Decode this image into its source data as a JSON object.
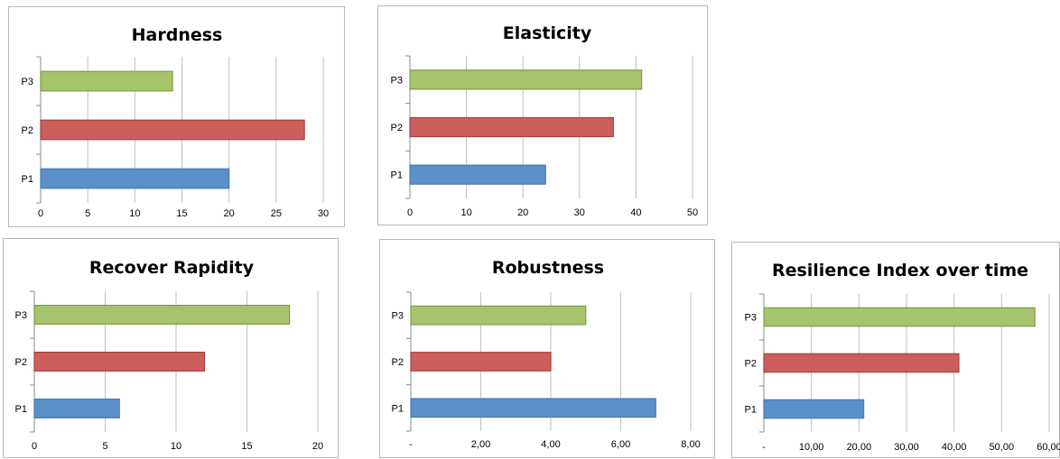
{
  "colors": {
    "P1": {
      "fill": "#5b8fc9",
      "stroke": "#4a7ab3"
    },
    "P2": {
      "fill": "#cc5f5c",
      "stroke": "#a8403d"
    },
    "P3": {
      "fill": "#a5c46c",
      "stroke": "#7e9c48"
    }
  },
  "chart_data": [
    {
      "id": "hardness",
      "type": "bar",
      "orientation": "horizontal",
      "title": "Hardness",
      "categories": [
        "P1",
        "P2",
        "P3"
      ],
      "values": [
        20,
        28,
        14
      ],
      "xlim": [
        0,
        30
      ],
      "xticks": [
        0,
        5,
        10,
        15,
        20,
        25,
        30
      ],
      "xtick_labels": [
        "0",
        "5",
        "10",
        "15",
        "20",
        "25",
        "30"
      ],
      "grid": true
    },
    {
      "id": "elasticity",
      "type": "bar",
      "orientation": "horizontal",
      "title": "Elasticity",
      "categories": [
        "P1",
        "P2",
        "P3"
      ],
      "values": [
        24,
        36,
        41
      ],
      "xlim": [
        0,
        50
      ],
      "xticks": [
        0,
        10,
        20,
        30,
        40,
        50
      ],
      "xtick_labels": [
        "0",
        "10",
        "20",
        "30",
        "40",
        "50"
      ],
      "grid": true
    },
    {
      "id": "recover-rapidity",
      "type": "bar",
      "orientation": "horizontal",
      "title": "Recover Rapidity",
      "categories": [
        "P1",
        "P2",
        "P3"
      ],
      "values": [
        6,
        12,
        18
      ],
      "xlim": [
        0,
        20
      ],
      "xticks": [
        0,
        5,
        10,
        15,
        20
      ],
      "xtick_labels": [
        "0",
        "5",
        "10",
        "15",
        "20"
      ],
      "grid": true
    },
    {
      "id": "robustness",
      "type": "bar",
      "orientation": "horizontal",
      "title": "Robustness",
      "categories": [
        "P1",
        "P2",
        "P3"
      ],
      "values": [
        7,
        4,
        5
      ],
      "xlim": [
        0,
        8
      ],
      "xticks": [
        0,
        2,
        4,
        6,
        8
      ],
      "xtick_labels": [
        "-",
        "2,00",
        "4,00",
        "6,00",
        "8,00"
      ],
      "grid": true
    },
    {
      "id": "resilience-index",
      "type": "bar",
      "orientation": "horizontal",
      "title": "Resilience Index over time",
      "categories": [
        "P1",
        "P2",
        "P3"
      ],
      "values": [
        21,
        41,
        57
      ],
      "xlim": [
        0,
        60
      ],
      "xticks": [
        0,
        10,
        20,
        30,
        40,
        50,
        60
      ],
      "xtick_labels": [
        "-",
        "10,00",
        "20,00",
        "30,00",
        "40,00",
        "50,00",
        "60,00"
      ],
      "grid": true
    }
  ]
}
